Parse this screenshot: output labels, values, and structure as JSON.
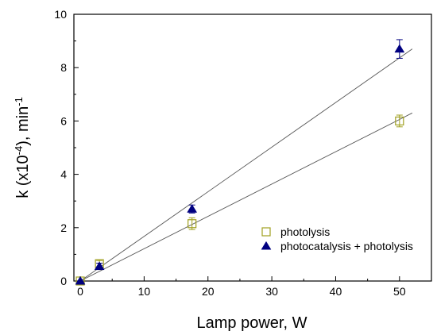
{
  "chart_data": {
    "type": "scatter",
    "xlabel": "Lamp power, W",
    "ylabel": {
      "prefix": "k (x10",
      "exponent": "-4",
      "mid": "), min",
      "unit_exponent": "-1"
    },
    "xlim": [
      -1,
      55
    ],
    "ylim": [
      0,
      10
    ],
    "x_ticks": [
      0,
      10,
      20,
      30,
      40,
      50
    ],
    "y_ticks": [
      0,
      2,
      4,
      6,
      8,
      10
    ],
    "grid": false,
    "legend_position": "center-right",
    "series": [
      {
        "name": "photolysis",
        "marker": "open-square",
        "color": "#a0a020",
        "points": [
          {
            "x": 0,
            "y": 0,
            "err": 0.05
          },
          {
            "x": 3,
            "y": 0.65,
            "err": 0.12
          },
          {
            "x": 17.5,
            "y": 2.15,
            "err": 0.22
          },
          {
            "x": 50,
            "y": 6.0,
            "err": 0.22
          }
        ],
        "fit": {
          "x": [
            0,
            52
          ],
          "y": [
            0.0,
            6.3
          ]
        }
      },
      {
        "name": "photocatalysis + photolysis",
        "marker": "filled-triangle",
        "color": "#000080",
        "points": [
          {
            "x": 0,
            "y": 0,
            "err": 0.05
          },
          {
            "x": 3,
            "y": 0.55,
            "err": 0.12
          },
          {
            "x": 17.5,
            "y": 2.7,
            "err": 0.15
          },
          {
            "x": 50,
            "y": 8.7,
            "err": 0.35
          }
        ],
        "fit": {
          "x": [
            0,
            52
          ],
          "y": [
            0.0,
            8.7
          ]
        }
      }
    ]
  }
}
